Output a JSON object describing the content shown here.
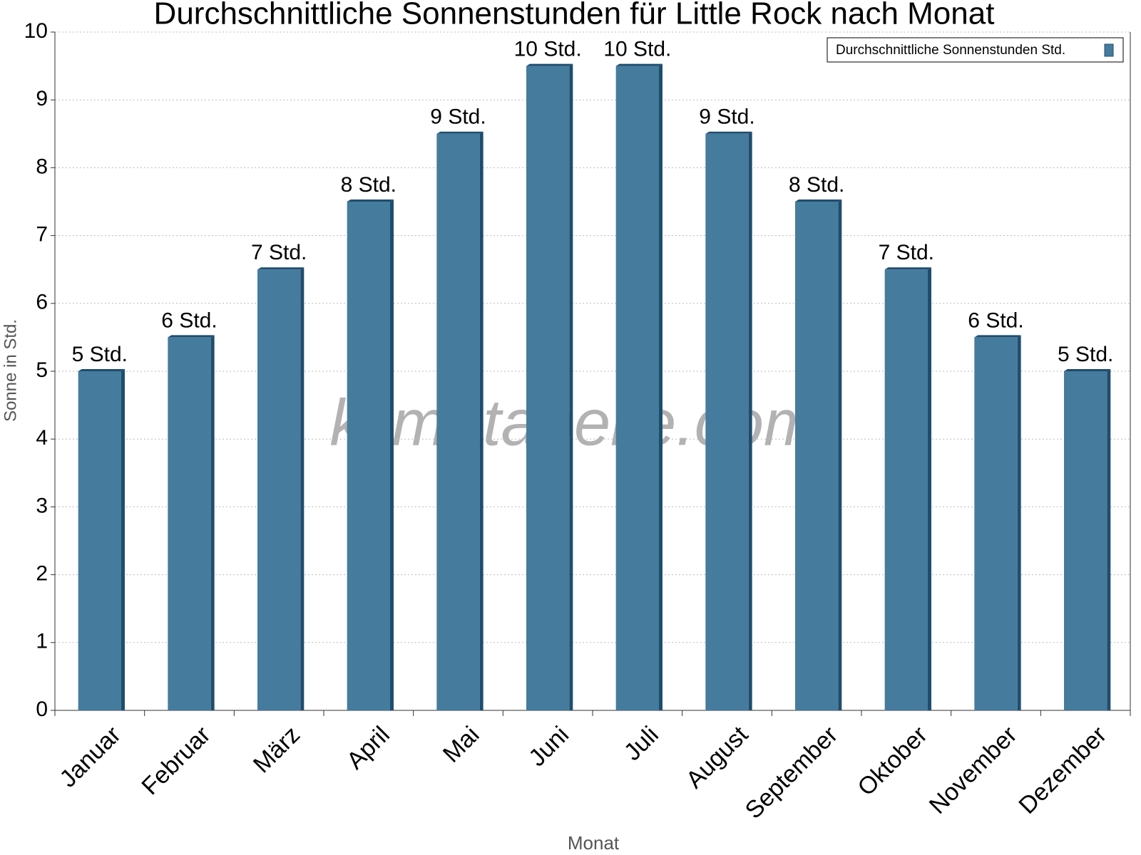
{
  "chart_data": {
    "type": "bar",
    "title": "Durchschnittliche Sonnenstunden für Little Rock nach Monat",
    "x_label": "Monat",
    "y_label": "Sonne in Std.",
    "watermark": "klimatabelle.com",
    "categories": [
      "Januar",
      "Februar",
      "März",
      "April",
      "Mai",
      "Juni",
      "Juli",
      "August",
      "September",
      "Oktober",
      "November",
      "Dezember"
    ],
    "series": [
      {
        "name": "Durchschnittliche Sonnenstunden Std.",
        "color": "#457b9d",
        "values": [
          5,
          5.5,
          6.5,
          7.5,
          8.5,
          9.5,
          9.5,
          8.5,
          7.5,
          6.5,
          5.5,
          5
        ],
        "value_labels": [
          "5 Std.",
          "6 Std.",
          "7 Std.",
          "8 Std.",
          "9 Std.",
          "10 Std.",
          "10 Std.",
          "9 Std.",
          "8 Std.",
          "7 Std.",
          "6 Std.",
          "5 Std."
        ]
      }
    ],
    "ylim": [
      0,
      10
    ],
    "yticks": [
      0,
      1,
      2,
      3,
      4,
      5,
      6,
      7,
      8,
      9,
      10
    ],
    "grid": true,
    "legend": "top-right"
  }
}
